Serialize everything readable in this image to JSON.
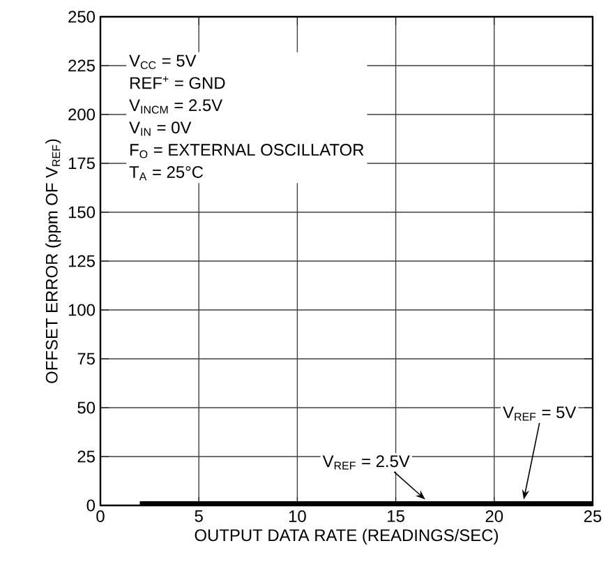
{
  "chart_data": {
    "type": "line",
    "xlabel": "OUTPUT DATA RATE (READINGS/SEC)",
    "ylabel": "OFFSET ERROR (ppm OF V$_{REF}$)",
    "xlim": [
      0,
      25
    ],
    "ylim": [
      0,
      250
    ],
    "xticks": [
      0,
      5,
      10,
      15,
      20,
      25
    ],
    "yticks": [
      0,
      25,
      50,
      75,
      100,
      125,
      150,
      175,
      200,
      225,
      250
    ],
    "grid": true,
    "marker": "none",
    "line_style": "solid",
    "series": [
      {
        "color": "#000000",
        "x": [
          2,
          25
        ],
        "values": [
          1,
          1
        ]
      }
    ],
    "annotations": [
      "V$_{CC}$ = 5V",
      "REF$^{+}$ = GND",
      "V$_{INCM}$ = 2.5V",
      "V$_{IN}$ = 0V",
      "F$_{O}$ = EXTERNAL OSCILLATOR",
      "T$_{A}$ = 25°C",
      {
        "text": "V$_{REF}$ = 2.5V",
        "x": 16.5,
        "y": 1
      },
      {
        "text": "V$_{REF}$ = 5V",
        "x": 21.5,
        "y": 1
      }
    ]
  }
}
